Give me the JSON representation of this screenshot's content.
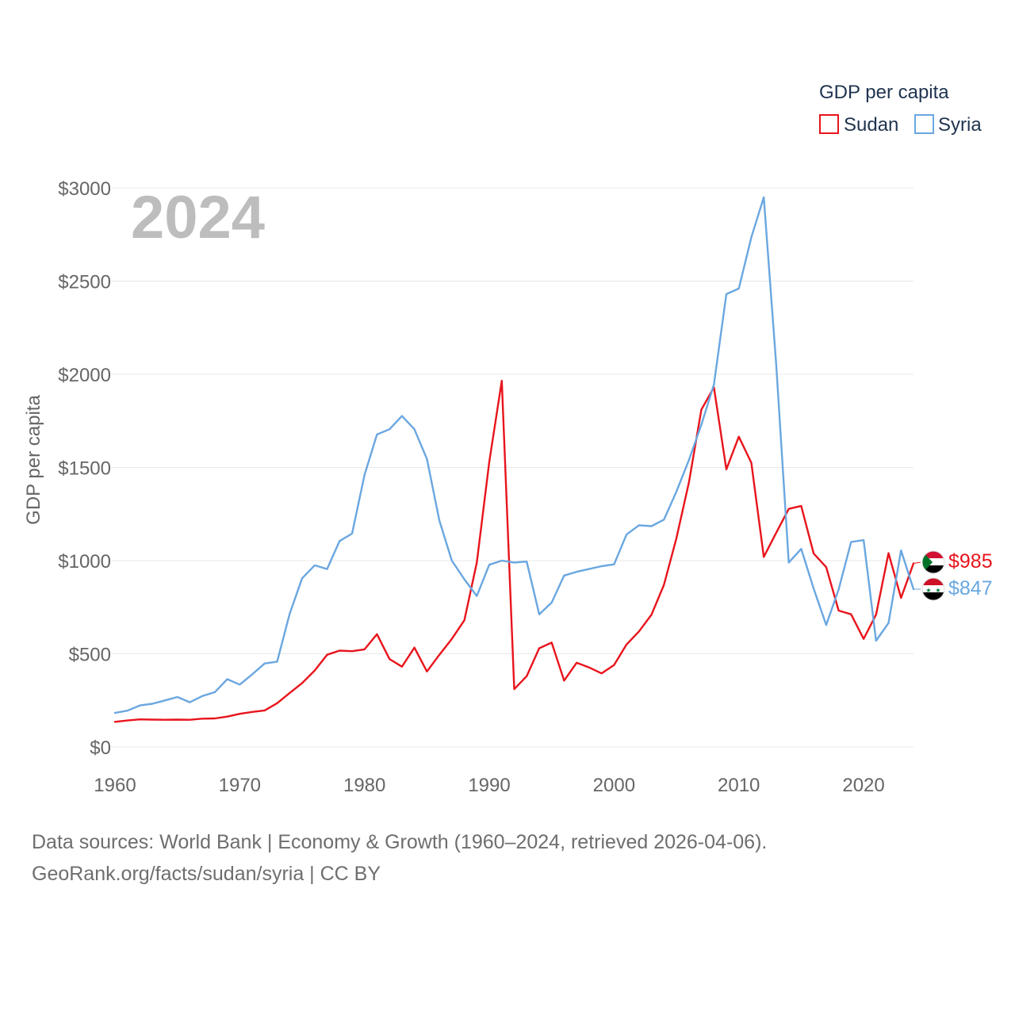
{
  "chart_data": {
    "type": "line",
    "legend": {
      "title": "GDP per capita",
      "items": [
        {
          "name": "Sudan",
          "color": "#e8141c"
        },
        {
          "name": "Syria",
          "color": "#6aa7e0"
        }
      ]
    },
    "year_label": "2024",
    "ylabel": "GDP per capita",
    "ylim": [
      0,
      3000
    ],
    "xlim": [
      1960,
      2024
    ],
    "y_ticks": [
      {
        "value": 0,
        "label": "$0"
      },
      {
        "value": 500,
        "label": "$500"
      },
      {
        "value": 1000,
        "label": "$1000"
      },
      {
        "value": 1500,
        "label": "$1500"
      },
      {
        "value": 2000,
        "label": "$2000"
      },
      {
        "value": 2500,
        "label": "$2500"
      },
      {
        "value": 3000,
        "label": "$3000"
      }
    ],
    "x_ticks": [
      {
        "value": 1960,
        "label": "1960"
      },
      {
        "value": 1970,
        "label": "1970"
      },
      {
        "value": 1980,
        "label": "1980"
      },
      {
        "value": 1990,
        "label": "1990"
      },
      {
        "value": 2000,
        "label": "2000"
      },
      {
        "value": 2010,
        "label": "2010"
      },
      {
        "value": 2020,
        "label": "2020"
      }
    ],
    "x": [
      1960,
      1961,
      1962,
      1963,
      1964,
      1965,
      1966,
      1967,
      1968,
      1969,
      1970,
      1971,
      1972,
      1973,
      1974,
      1975,
      1976,
      1977,
      1978,
      1979,
      1980,
      1981,
      1982,
      1983,
      1984,
      1985,
      1986,
      1987,
      1988,
      1989,
      1990,
      1991,
      1992,
      1993,
      1994,
      1995,
      1996,
      1997,
      1998,
      1999,
      2000,
      2001,
      2002,
      2003,
      2004,
      2005,
      2006,
      2007,
      2008,
      2009,
      2010,
      2011,
      2012,
      2013,
      2014,
      2015,
      2016,
      2017,
      2018,
      2019,
      2020,
      2021,
      2022,
      2023,
      2024
    ],
    "series": [
      {
        "name": "Sudan",
        "color": "#e8141c",
        "end_label": "$985",
        "values": [
          135,
          142,
          148,
          147,
          146,
          147,
          146,
          152,
          153,
          163,
          178,
          188,
          196,
          235,
          290,
          343,
          410,
          495,
          517,
          514,
          524,
          605,
          472,
          431,
          533,
          405,
          495,
          580,
          680,
          990,
          1530,
          1965,
          310,
          380,
          530,
          560,
          356,
          452,
          427,
          395,
          440,
          550,
          620,
          710,
          870,
          1120,
          1420,
          1810,
          1930,
          1490,
          1665,
          1525,
          1020,
          1150,
          1278,
          1293,
          1038,
          965,
          732,
          712,
          580,
          710,
          1040,
          800,
          985
        ]
      },
      {
        "name": "Syria",
        "color": "#6aa7e0",
        "end_label": "$847",
        "values": [
          183,
          195,
          223,
          232,
          250,
          268,
          240,
          273,
          294,
          364,
          335,
          390,
          448,
          458,
          715,
          905,
          975,
          955,
          1105,
          1145,
          1460,
          1677,
          1705,
          1776,
          1705,
          1545,
          1215,
          1000,
          900,
          810,
          978,
          1000,
          990,
          995,
          712,
          775,
          920,
          940,
          955,
          970,
          980,
          1140,
          1190,
          1185,
          1220,
          1370,
          1540,
          1730,
          1945,
          2430,
          2460,
          2735,
          2950,
          2050,
          990,
          1063,
          850,
          655,
          845,
          1100,
          1110,
          570,
          665,
          1055,
          847
        ]
      }
    ]
  },
  "source": {
    "line1": "Data sources: World Bank | Economy & Growth (1960–2024, retrieved 2026-04-06).",
    "line2": "GeoRank.org/facts/sudan/syria | CC BY"
  }
}
